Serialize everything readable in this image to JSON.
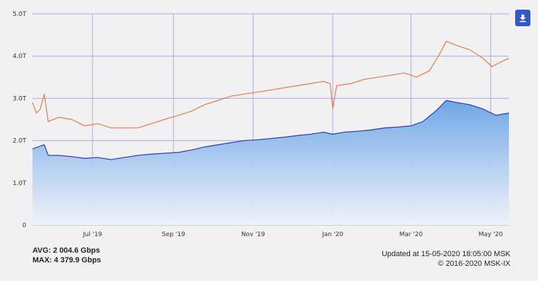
{
  "colors": {
    "background": "#f1f1f4",
    "grid": "#a9acd9",
    "in_line": "#3a3fb0",
    "in_fill_top": "#6ea7e6",
    "in_fill_bottom": "#eef2fa",
    "out_line": "#e87843",
    "button": "#3359c9"
  },
  "download_icon": "download-icon",
  "stats": {
    "avg_label": "AVG:",
    "avg_value": "2 004.6 Gbps",
    "max_label": "MAX:",
    "max_value": "4 379.9 Gbps"
  },
  "footer": {
    "updated": "Updated at 15-05-2020 18:05:00 MSK",
    "copyright": "© 2016-2020 MSK-IX"
  },
  "chart_data": {
    "type": "area",
    "x_range": [
      "2019-05-16",
      "2020-05-15"
    ],
    "ylim": [
      0,
      5.0
    ],
    "y_ticks": [
      "0",
      "1.0T",
      "2.0T",
      "3.0T",
      "4.0T",
      "5.0T"
    ],
    "x_ticks": [
      {
        "date": "2019-07-01",
        "label": "Jul '19"
      },
      {
        "date": "2019-09-01",
        "label": "Sep '19"
      },
      {
        "date": "2019-11-01",
        "label": "Nov '19"
      },
      {
        "date": "2020-01-01",
        "label": "Jan '20"
      },
      {
        "date": "2020-03-01",
        "label": "Mar '20"
      },
      {
        "date": "2020-05-01",
        "label": "May '20"
      }
    ],
    "grid": true,
    "series": [
      {
        "type": "line",
        "points": [
          [
            "2019-05-16",
            2.9
          ],
          [
            "2019-05-19",
            2.65
          ],
          [
            "2019-05-22",
            2.75
          ],
          [
            "2019-05-25",
            3.1
          ],
          [
            "2019-05-28",
            2.45
          ],
          [
            "2019-06-05",
            2.55
          ],
          [
            "2019-06-15",
            2.5
          ],
          [
            "2019-06-25",
            2.35
          ],
          [
            "2019-07-05",
            2.4
          ],
          [
            "2019-07-15",
            2.3
          ],
          [
            "2019-07-25",
            2.3
          ],
          [
            "2019-08-05",
            2.3
          ],
          [
            "2019-08-15",
            2.4
          ],
          [
            "2019-08-25",
            2.5
          ],
          [
            "2019-09-05",
            2.6
          ],
          [
            "2019-09-15",
            2.7
          ],
          [
            "2019-09-25",
            2.85
          ],
          [
            "2019-10-05",
            2.95
          ],
          [
            "2019-10-15",
            3.05
          ],
          [
            "2019-10-25",
            3.1
          ],
          [
            "2019-11-05",
            3.15
          ],
          [
            "2019-11-15",
            3.2
          ],
          [
            "2019-11-25",
            3.25
          ],
          [
            "2019-12-05",
            3.3
          ],
          [
            "2019-12-15",
            3.35
          ],
          [
            "2019-12-25",
            3.4
          ],
          [
            "2019-12-30",
            3.35
          ],
          [
            "2020-01-01",
            2.75
          ],
          [
            "2020-01-04",
            3.3
          ],
          [
            "2020-01-15",
            3.35
          ],
          [
            "2020-01-25",
            3.45
          ],
          [
            "2020-02-05",
            3.5
          ],
          [
            "2020-02-15",
            3.55
          ],
          [
            "2020-02-25",
            3.6
          ],
          [
            "2020-03-05",
            3.5
          ],
          [
            "2020-03-15",
            3.65
          ],
          [
            "2020-03-22",
            4.0
          ],
          [
            "2020-03-28",
            4.35
          ],
          [
            "2020-04-05",
            4.25
          ],
          [
            "2020-04-15",
            4.15
          ],
          [
            "2020-04-25",
            3.95
          ],
          [
            "2020-05-02",
            3.75
          ],
          [
            "2020-05-08",
            3.85
          ],
          [
            "2020-05-15",
            3.95
          ]
        ]
      },
      {
        "type": "area",
        "points": [
          [
            "2019-05-16",
            1.8
          ],
          [
            "2019-05-20",
            1.85
          ],
          [
            "2019-05-25",
            1.9
          ],
          [
            "2019-05-28",
            1.65
          ],
          [
            "2019-06-05",
            1.65
          ],
          [
            "2019-06-15",
            1.62
          ],
          [
            "2019-06-25",
            1.58
          ],
          [
            "2019-07-05",
            1.6
          ],
          [
            "2019-07-15",
            1.55
          ],
          [
            "2019-07-25",
            1.6
          ],
          [
            "2019-08-05",
            1.65
          ],
          [
            "2019-08-15",
            1.68
          ],
          [
            "2019-08-25",
            1.7
          ],
          [
            "2019-09-05",
            1.72
          ],
          [
            "2019-09-15",
            1.78
          ],
          [
            "2019-09-25",
            1.85
          ],
          [
            "2019-10-05",
            1.9
          ],
          [
            "2019-10-15",
            1.95
          ],
          [
            "2019-10-25",
            2.0
          ],
          [
            "2019-11-05",
            2.02
          ],
          [
            "2019-11-15",
            2.05
          ],
          [
            "2019-11-25",
            2.08
          ],
          [
            "2019-12-05",
            2.12
          ],
          [
            "2019-12-15",
            2.15
          ],
          [
            "2019-12-25",
            2.2
          ],
          [
            "2020-01-01",
            2.15
          ],
          [
            "2020-01-10",
            2.2
          ],
          [
            "2020-01-20",
            2.22
          ],
          [
            "2020-01-30",
            2.25
          ],
          [
            "2020-02-10",
            2.3
          ],
          [
            "2020-02-20",
            2.32
          ],
          [
            "2020-03-01",
            2.35
          ],
          [
            "2020-03-10",
            2.45
          ],
          [
            "2020-03-20",
            2.7
          ],
          [
            "2020-03-28",
            2.95
          ],
          [
            "2020-04-05",
            2.9
          ],
          [
            "2020-04-15",
            2.85
          ],
          [
            "2020-04-25",
            2.75
          ],
          [
            "2020-05-05",
            2.6
          ],
          [
            "2020-05-15",
            2.65
          ]
        ]
      }
    ]
  }
}
